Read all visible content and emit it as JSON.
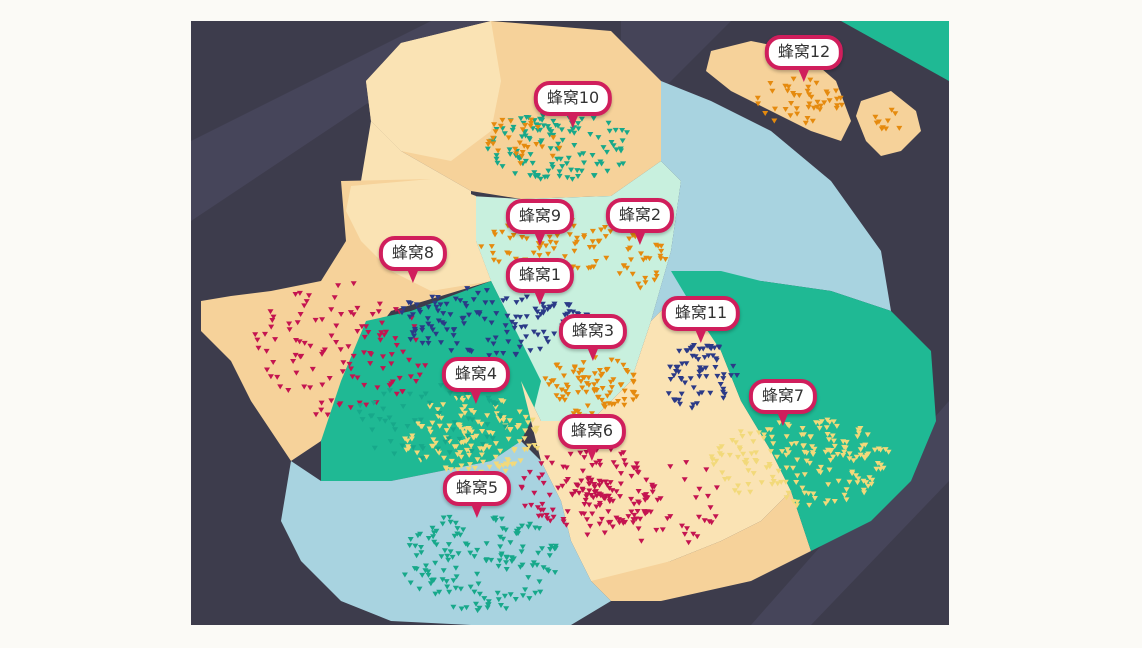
{
  "colors": {
    "background": "#3d3c4c",
    "page": "#fbfaf6",
    "district_peach": "#f6d29a",
    "district_cream": "#fae3b4",
    "district_mint": "#c8f0de",
    "district_teal": "#1fb994",
    "district_lightblue": "#a8d3e0",
    "triangle_orange": "#e58a0e",
    "triangle_teal": "#17a88a",
    "triangle_navy": "#2b3a87",
    "triangle_crimson": "#c41450",
    "triangle_yellow": "#f2d97a",
    "marker_border": "#d01e5c"
  },
  "markers": [
    {
      "id": "hive-1",
      "label": "蜂窝1"
    },
    {
      "id": "hive-2",
      "label": "蜂窝2"
    },
    {
      "id": "hive-3",
      "label": "蜂窝3"
    },
    {
      "id": "hive-4",
      "label": "蜂窝4"
    },
    {
      "id": "hive-5",
      "label": "蜂窝5"
    },
    {
      "id": "hive-6",
      "label": "蜂窝6"
    },
    {
      "id": "hive-7",
      "label": "蜂窝7"
    },
    {
      "id": "hive-8",
      "label": "蜂窝8"
    },
    {
      "id": "hive-9",
      "label": "蜂窝9"
    },
    {
      "id": "hive-10",
      "label": "蜂窝10"
    },
    {
      "id": "hive-11",
      "label": "蜂窝11"
    },
    {
      "id": "hive-12",
      "label": "蜂窝12"
    }
  ]
}
